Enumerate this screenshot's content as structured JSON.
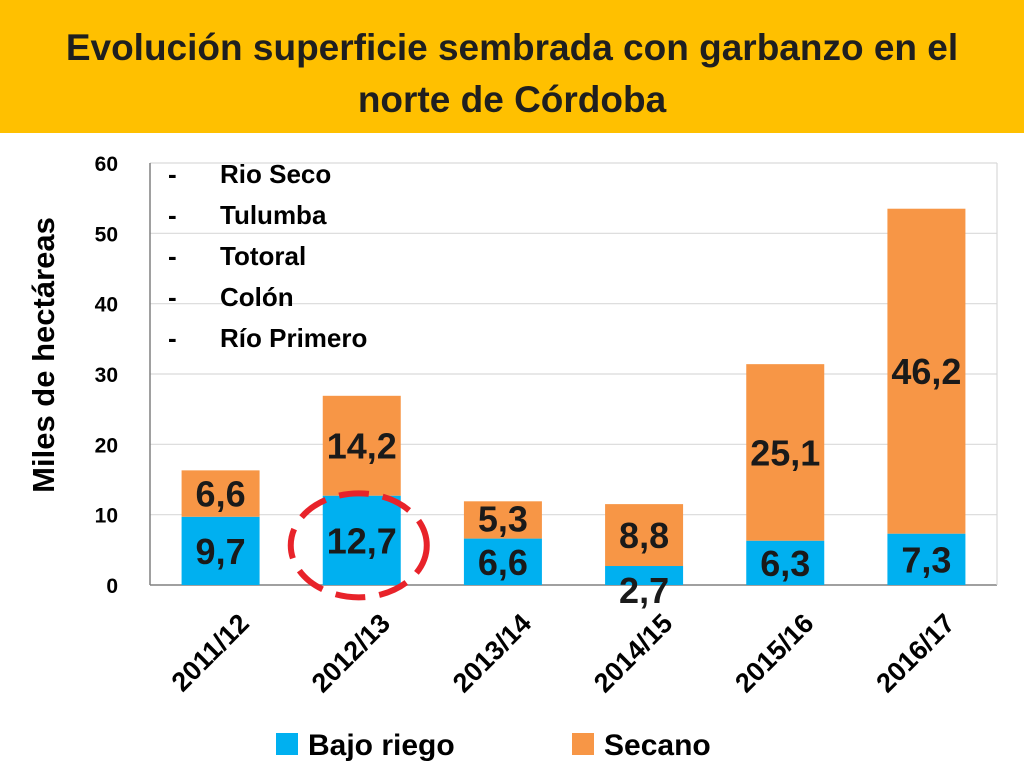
{
  "header": {
    "title": "Evolución superficie sembrada con garbanzo en el norte de Córdoba"
  },
  "chart_data": {
    "type": "bar",
    "stacked": true,
    "categories": [
      "2011/12",
      "2012/13",
      "2013/14",
      "2014/15",
      "2015/16",
      "2016/17"
    ],
    "series": [
      {
        "name": "Bajo riego",
        "color": "#00b0f0",
        "values": [
          9.7,
          12.7,
          6.6,
          2.7,
          6.3,
          7.3
        ],
        "labels": [
          "9,7",
          "12,7",
          "6,6",
          "2,7",
          "6,3",
          "7,3"
        ]
      },
      {
        "name": "Secano",
        "color": "#f79646",
        "values": [
          6.6,
          14.2,
          5.3,
          8.8,
          25.1,
          46.2
        ],
        "labels": [
          "6,6",
          "14,2",
          "5,3",
          "8,8",
          "25,1",
          "46,2"
        ]
      }
    ],
    "ylabel": "Miles de hectáreas",
    "ylim": [
      0,
      60
    ],
    "yticks": [
      0,
      10,
      20,
      30,
      40,
      50,
      60
    ],
    "grid": true,
    "legend": "bottom",
    "annotations": {
      "departments": [
        "Rio Seco",
        "Tulumba",
        "Totoral",
        "Colón",
        "Río Primero"
      ],
      "bullet": "-",
      "highlight_category": "2012/13",
      "highlight_color": "#e8232a"
    }
  }
}
